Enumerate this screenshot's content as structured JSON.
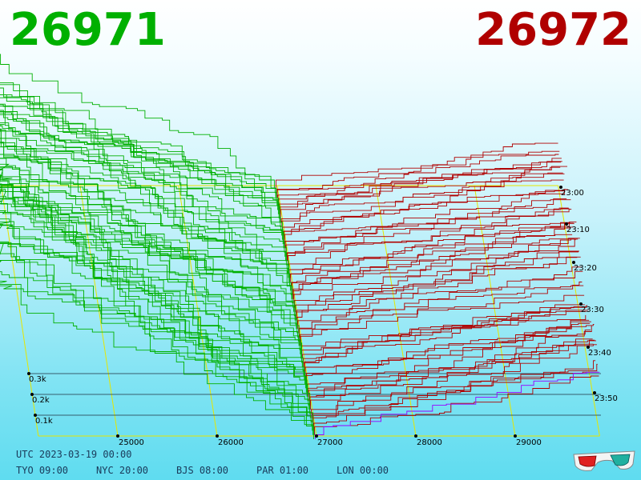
{
  "header": {
    "bid_price": "26971",
    "ask_price": "26972"
  },
  "colors": {
    "bid": "#00b000",
    "ask": "#b00000",
    "grid": "#e6e600",
    "volume_line": "#203040",
    "current_ask": "#9900ff"
  },
  "footer": {
    "utc": "UTC 2023-03-19 00:00",
    "tyo": "TYO 09:00",
    "nyc": "NYC 20:00",
    "bjs": "BJS 08:00",
    "par": "PAR 01:00",
    "lon": "LON 00:00"
  },
  "icons": {
    "stereo": "3d-glasses-icon"
  },
  "chart_data": {
    "type": "area",
    "title": "",
    "xlabel": "",
    "ylabel": "",
    "x_ticks": [
      25000,
      26000,
      27000,
      28000,
      29000
    ],
    "x_tick_labels": [
      "25000",
      "26000",
      "27000",
      "28000",
      "29000"
    ],
    "z_ticks": [
      100,
      200,
      300
    ],
    "z_tick_labels": [
      "0.1k",
      "0.2k",
      "0.3k"
    ],
    "time_labels": [
      "23:00",
      "23:10",
      "23:20",
      "23:30",
      "23:40",
      "23:50"
    ],
    "snapshots": 60,
    "mid_price": 26971.5,
    "series": [
      {
        "name": "26971",
        "side": "bid",
        "color": "#00b000",
        "depth_profile": [
          {
            "price": 24200,
            "cum_volume": 420
          },
          {
            "price": 25000,
            "cum_volume": 410
          },
          {
            "price": 26000,
            "cum_volume": 380
          },
          {
            "price": 26500,
            "cum_volume": 300
          },
          {
            "price": 26900,
            "cum_volume": 150
          },
          {
            "price": 26971,
            "cum_volume": 0
          }
        ]
      },
      {
        "name": "26972",
        "side": "ask",
        "color": "#b00000",
        "depth_profile": [
          {
            "price": 26972,
            "cum_volume": 0
          },
          {
            "price": 27100,
            "cum_volume": 120
          },
          {
            "price": 28000,
            "cum_volume": 160
          },
          {
            "price": 29000,
            "cum_volume": 220
          },
          {
            "price": 29700,
            "cum_volume": 250
          }
        ]
      }
    ]
  }
}
